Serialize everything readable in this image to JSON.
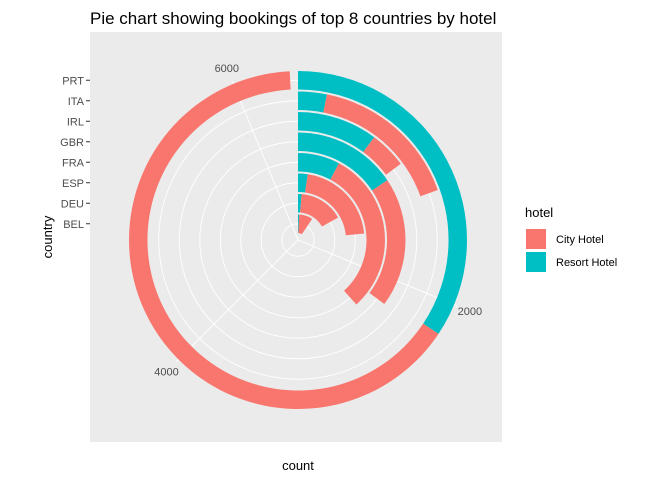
{
  "chart_data": {
    "type": "pie",
    "title": "Pie chart showing bookings of top 8 countries by hotel",
    "xlabel": "count",
    "ylabel": "country",
    "coord": "polar",
    "count_max": 6400,
    "count_ticks": [
      2000,
      4000,
      6000
    ],
    "count_tick_labels": [
      "2000",
      "4000",
      "6000"
    ],
    "categories": [
      "BEL",
      "DEU",
      "ESP",
      "FRA",
      "GBR",
      "IRL",
      "ITA",
      "PRT"
    ],
    "series": [
      {
        "name": "City Hotel",
        "color": "#F8766D",
        "values": [
          550,
          1000,
          1350,
          1950,
          1250,
          300,
          1050,
          4150
        ]
      },
      {
        "name": "Resort Hotel",
        "color": "#00BFC4",
        "values": [
          50,
          80,
          150,
          500,
          1000,
          650,
          200,
          2200
        ]
      }
    ],
    "legend": {
      "title": "hotel",
      "position": "right",
      "entries": [
        "City Hotel",
        "Resort Hotel"
      ]
    },
    "grid": true,
    "panel_background": "#EBEBEB",
    "grid_color": "#FFFFFF"
  }
}
